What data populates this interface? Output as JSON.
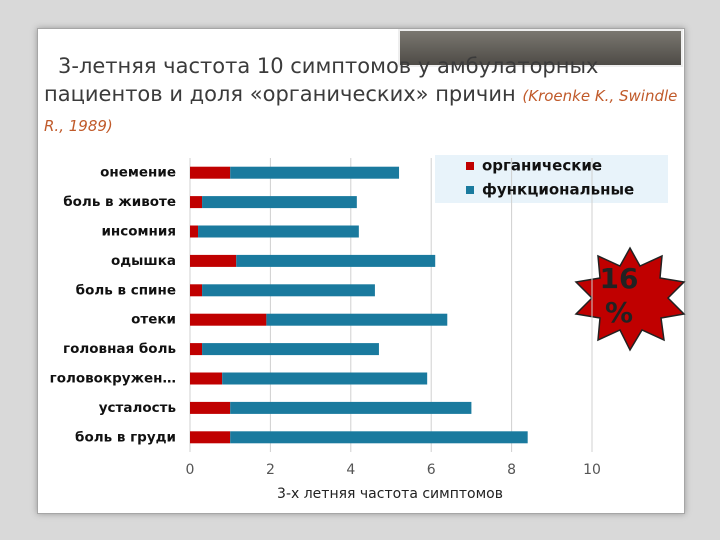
{
  "chart_data": {
    "type": "stacked-bar-horizontal",
    "title": "3-летняя частота 10 симптомов у амбулаторных пациентов и доля «органических» причин",
    "citation": "(Kroenke K., Swindle R., 1989)",
    "categories": [
      "онемение",
      "боль в животе",
      "инсомния",
      "одышка",
      "боль в спине",
      "отеки",
      "головная боль",
      "головокружен…",
      "усталость",
      "боль в груди"
    ],
    "series": [
      {
        "name": "органические",
        "color": "#c00000",
        "values": [
          1.0,
          0.3,
          0.2,
          1.15,
          0.3,
          1.9,
          0.3,
          0.8,
          1.0,
          1.0
        ]
      },
      {
        "name": "функциональные",
        "color": "#1a7a9e",
        "values": [
          4.2,
          3.85,
          4.0,
          4.95,
          4.3,
          4.5,
          4.4,
          5.1,
          6.0,
          7.4
        ]
      }
    ],
    "x_label": "3-х летняя частота симптомов",
    "xlim": [
      0,
      10
    ],
    "xticks": [
      0,
      2,
      4,
      6,
      8,
      10
    ],
    "grid": true,
    "legend": "top-right",
    "annotation": "16 %"
  }
}
